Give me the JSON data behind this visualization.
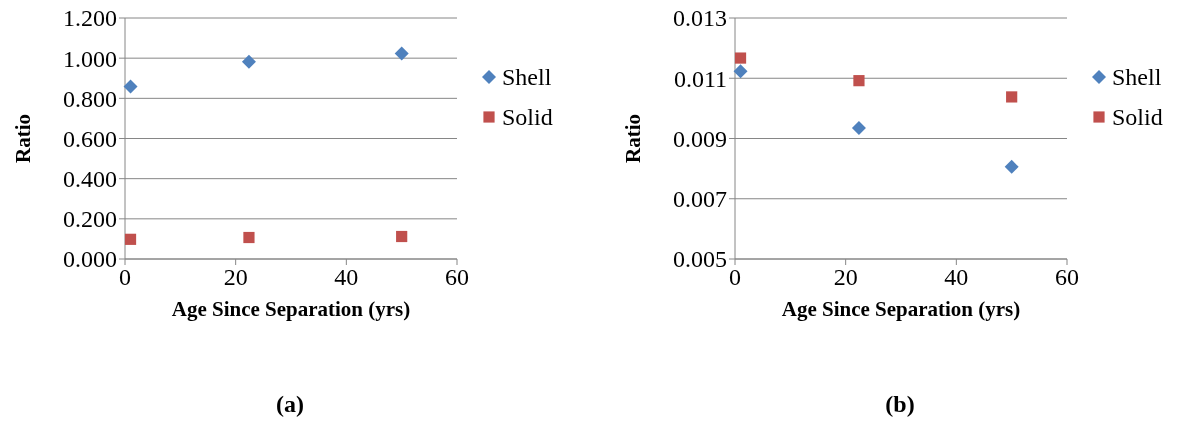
{
  "chart_data": [
    {
      "type": "scatter",
      "xlabel": "Age Since Separation (yrs)",
      "ylabel": "Ratio",
      "x": [
        1,
        22.4,
        50
      ],
      "xlim": [
        0,
        60
      ],
      "xticks": [
        0,
        20,
        40,
        60
      ],
      "ylim": [
        0,
        1.2
      ],
      "yticks": [
        {
          "value": 0,
          "label": "0.000"
        },
        {
          "value": 0.2,
          "label": "0.200"
        },
        {
          "value": 0.4,
          "label": "0.400"
        },
        {
          "value": 0.6,
          "label": "0.600"
        },
        {
          "value": 0.8,
          "label": "0.800"
        },
        {
          "value": 1,
          "label": "1.000"
        },
        {
          "value": 1.2,
          "label": "1.200"
        }
      ],
      "grid": "y",
      "legend": "right",
      "annotations": [
        "(a)"
      ],
      "series": [
        {
          "name": "Shell",
          "color": "#4f81bd",
          "marker": "diamond",
          "values": [
            0.859,
            0.982,
            1.023
          ]
        },
        {
          "name": "Solid",
          "color": "#c0504d",
          "marker": "square",
          "values": [
            0.098,
            0.107,
            0.112
          ]
        }
      ]
    },
    {
      "type": "scatter",
      "xlabel": "Age Since Separation (yrs)",
      "ylabel": "Ratio",
      "x": [
        1,
        22.4,
        50
      ],
      "xlim": [
        0,
        60
      ],
      "xticks": [
        0,
        20,
        40,
        60
      ],
      "ylim": [
        0.005,
        0.013
      ],
      "yticks": [
        {
          "value": 0.005,
          "label": "0.005"
        },
        {
          "value": 0.007,
          "label": "0.007"
        },
        {
          "value": 0.009,
          "label": "0.009"
        },
        {
          "value": 0.011,
          "label": "0.011"
        },
        {
          "value": 0.013,
          "label": "0.013"
        }
      ],
      "grid": "y",
      "legend": "right",
      "annotations": [
        "(b)"
      ],
      "series": [
        {
          "name": "Shell",
          "color": "#4f81bd",
          "marker": "diamond",
          "values": [
            0.01123,
            0.00935,
            0.00806
          ]
        },
        {
          "name": "Solid",
          "color": "#c0504d",
          "marker": "square",
          "values": [
            0.01167,
            0.01092,
            0.01038
          ]
        }
      ]
    }
  ]
}
